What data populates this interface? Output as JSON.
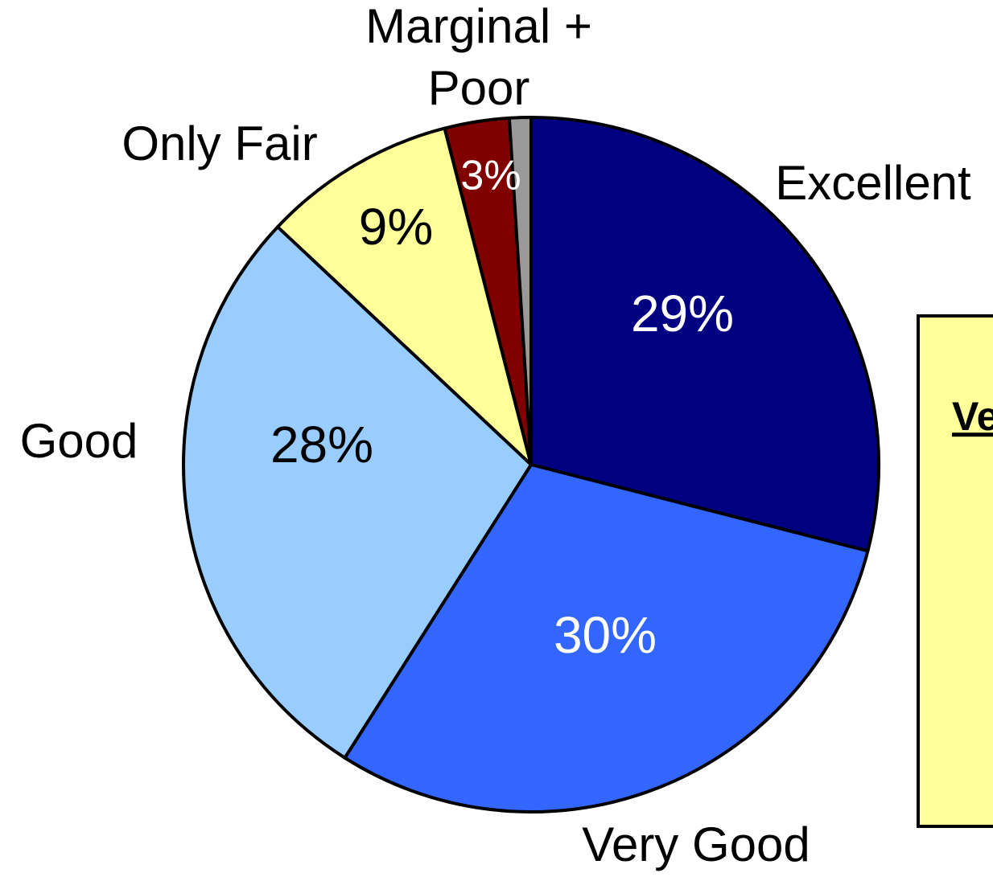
{
  "chart_data": {
    "type": "pie",
    "categories": [
      "Excellent",
      "Very Good",
      "Good",
      "Only Fair",
      "Marginal + Poor",
      null
    ],
    "values": [
      29,
      30,
      28,
      9,
      3,
      1
    ],
    "value_labels": [
      "29%",
      "30%",
      "28%",
      "9%",
      "3%",
      null
    ],
    "colors": [
      "#000080",
      "#3366ff",
      "#99ccff",
      "#ffff99",
      "#800000",
      "#999999"
    ],
    "start_angle": 0,
    "direction": "clockwise",
    "annotation": "Ve"
  }
}
